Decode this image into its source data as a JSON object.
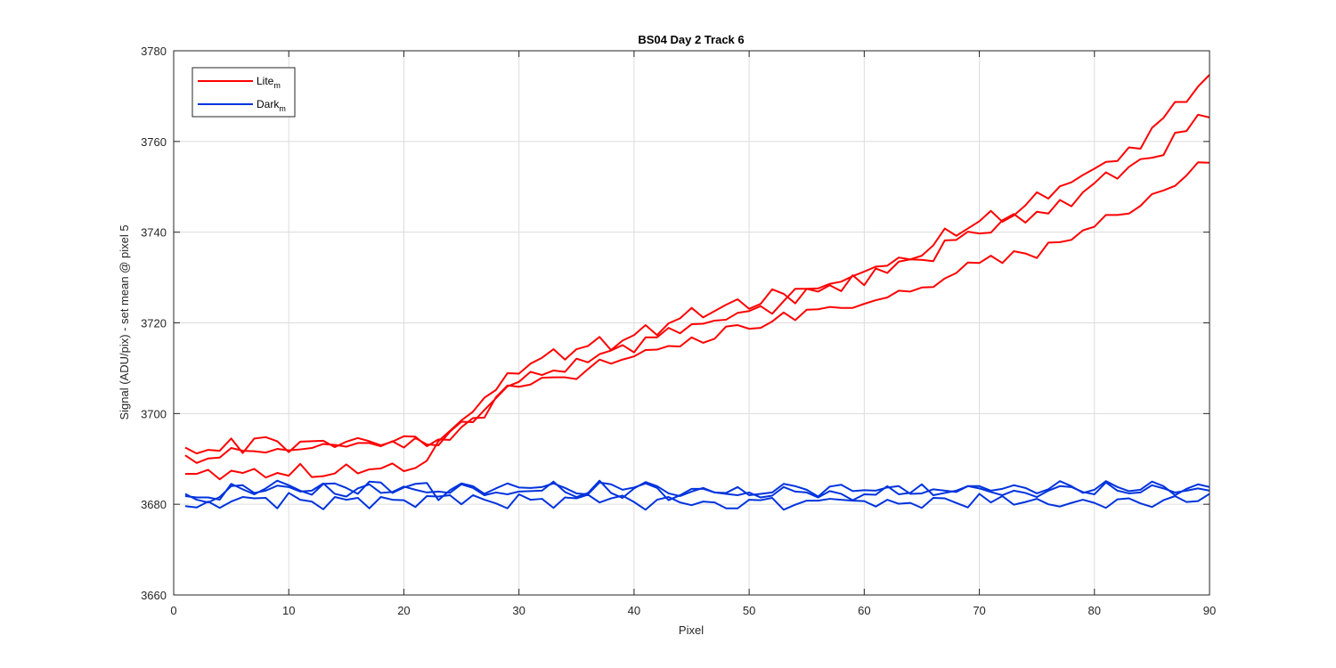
{
  "chart_data": {
    "type": "line",
    "title": "BS04 Day 2 Track 6",
    "xlabel": "Pixel",
    "ylabel": "Signal (ADU/pix) - set mean @ pixel 5",
    "xlim": [
      0,
      90
    ],
    "ylim": [
      3660,
      3780
    ],
    "x_ticks": [
      "0",
      "10",
      "20",
      "30",
      "40",
      "50",
      "60",
      "70",
      "80",
      "90"
    ],
    "y_ticks": [
      "3660",
      "3680",
      "3700",
      "3720",
      "3740",
      "3760",
      "3780"
    ],
    "grid": true,
    "legend_position": "top-left",
    "legend": [
      {
        "label": "Lite",
        "subscript": "m",
        "color": "#ff0000"
      },
      {
        "label": "Dark",
        "subscript": "m",
        "color": "#0033dd"
      }
    ],
    "x": [
      1,
      2,
      3,
      4,
      5,
      6,
      7,
      8,
      9,
      10,
      11,
      12,
      13,
      14,
      15,
      16,
      17,
      18,
      19,
      20,
      21,
      22,
      23,
      24,
      25,
      26,
      27,
      28,
      29,
      30,
      31,
      32,
      33,
      34,
      35,
      36,
      37,
      38,
      39,
      40,
      41,
      42,
      43,
      44,
      45,
      46,
      47,
      48,
      49,
      50,
      51,
      52,
      53,
      54,
      55,
      56,
      57,
      58,
      59,
      60,
      61,
      62,
      63,
      64,
      65,
      66,
      67,
      68,
      69,
      70,
      71,
      72,
      73,
      74,
      75,
      76,
      77,
      78,
      79,
      80,
      81,
      82,
      83,
      84,
      85,
      86,
      87,
      88,
      89,
      90
    ],
    "series": [
      {
        "group": "Lite",
        "color": "#ff0000",
        "values": [
          3692.5,
          3691.2,
          3692.0,
          3691.8,
          3694.5,
          3691.3,
          3694.5,
          3694.8,
          3693.9,
          3691.5,
          3693.8,
          3693.9,
          3694.0,
          3692.6,
          3693.8,
          3694.6,
          3693.9,
          3693.0,
          3693.8,
          3695.0,
          3694.9,
          3692.8,
          3694.3,
          3694.2,
          3697.0,
          3699.0,
          3699.1,
          3703.6,
          3706.2,
          3705.9,
          3706.4,
          3707.9,
          3708.0,
          3708.0,
          3707.6,
          3709.8,
          3711.9,
          3711.0,
          3711.9,
          3712.6,
          3714.0,
          3714.1,
          3714.9,
          3714.8,
          3716.8,
          3715.6,
          3716.5,
          3719.2,
          3719.5,
          3718.7,
          3718.9,
          3720.3,
          3722.3,
          3720.6,
          3722.9,
          3723.0,
          3723.5,
          3723.3,
          3723.3,
          3724.2,
          3725.0,
          3725.6,
          3727.1,
          3726.9,
          3727.8,
          3727.9,
          3729.8,
          3731.0,
          3733.3,
          3733.2,
          3734.8,
          3733.2,
          3735.8,
          3735.3,
          3734.3,
          3737.7,
          3737.8,
          3738.3,
          3740.4,
          3741.2,
          3743.8,
          3743.8,
          3744.1,
          3745.8,
          3748.4,
          3749.2,
          3750.2,
          3752.5,
          3755.4,
          3755.3
        ]
      },
      {
        "group": "Lite",
        "color": "#ff0000",
        "values": [
          3690.8,
          3689.1,
          3690.1,
          3690.3,
          3692.4,
          3691.8,
          3691.7,
          3691.4,
          3692.2,
          3691.9,
          3692.1,
          3692.4,
          3693.3,
          3693.1,
          3692.7,
          3693.5,
          3693.5,
          3692.8,
          3693.9,
          3692.5,
          3694.6,
          3693.2,
          3693.0,
          3696.0,
          3698.2,
          3698.1,
          3700.8,
          3703.4,
          3706.0,
          3707.0,
          3709.2,
          3708.5,
          3709.5,
          3709.2,
          3712.1,
          3711.3,
          3713.1,
          3713.9,
          3715.1,
          3713.5,
          3716.8,
          3716.8,
          3718.9,
          3717.7,
          3719.7,
          3719.8,
          3720.5,
          3720.7,
          3722.2,
          3722.6,
          3723.7,
          3722.0,
          3724.8,
          3727.5,
          3727.5,
          3726.9,
          3728.3,
          3727.0,
          3730.5,
          3728.3,
          3732.0,
          3731.0,
          3733.5,
          3734.0,
          3733.9,
          3733.6,
          3738.2,
          3738.3,
          3740.1,
          3739.7,
          3739.9,
          3742.6,
          3744.0,
          3742.1,
          3744.5,
          3744.1,
          3747.1,
          3745.7,
          3748.8,
          3750.8,
          3753.2,
          3751.8,
          3754.4,
          3756.1,
          3756.4,
          3757.0,
          3761.9,
          3762.3,
          3765.9,
          3765.3
        ]
      },
      {
        "group": "Lite",
        "color": "#ff0000",
        "values": [
          3686.7,
          3686.7,
          3687.6,
          3685.5,
          3687.4,
          3686.9,
          3687.8,
          3685.9,
          3686.9,
          3686.3,
          3688.9,
          3686.0,
          3686.2,
          3686.8,
          3688.8,
          3686.8,
          3687.7,
          3687.9,
          3689.0,
          3687.3,
          3688.0,
          3689.6,
          3693.9,
          3696.2,
          3698.5,
          3700.4,
          3703.5,
          3705.2,
          3708.9,
          3708.8,
          3711.0,
          3712.3,
          3714.2,
          3711.9,
          3714.2,
          3714.9,
          3716.9,
          3714.0,
          3716.1,
          3717.3,
          3719.5,
          3717.3,
          3719.9,
          3721.0,
          3723.3,
          3721.2,
          3722.6,
          3724.0,
          3725.2,
          3723.1,
          3724.2,
          3727.4,
          3726.4,
          3724.3,
          3727.5,
          3727.6,
          3728.6,
          3729.1,
          3730.3,
          3731.3,
          3732.4,
          3732.6,
          3734.4,
          3734.0,
          3734.8,
          3737.1,
          3740.8,
          3739.2,
          3740.8,
          3742.4,
          3744.7,
          3742.3,
          3743.7,
          3745.9,
          3748.8,
          3747.4,
          3750.1,
          3751.0,
          3752.6,
          3754.0,
          3755.5,
          3755.7,
          3758.7,
          3758.4,
          3763.0,
          3765.2,
          3768.7,
          3768.7,
          3772.1,
          3774.7
        ]
      },
      {
        "group": "Dark",
        "color": "#0033dd",
        "values": [
          3681.8,
          3681.5,
          3681.5,
          3681.0,
          3684.5,
          3683.3,
          3682.2,
          3683.5,
          3685.2,
          3684.2,
          3683.0,
          3682.1,
          3684.5,
          3684.6,
          3683.6,
          3682.3,
          3685.0,
          3684.8,
          3682.5,
          3683.7,
          3684.5,
          3684.7,
          3680.9,
          3683.1,
          3684.6,
          3684.0,
          3682.3,
          3683.5,
          3684.6,
          3683.7,
          3683.6,
          3683.8,
          3684.6,
          3683.6,
          3682.4,
          3682.2,
          3684.8,
          3684.4,
          3683.2,
          3683.7,
          3684.6,
          3683.6,
          3680.9,
          3682.0,
          3683.4,
          3683.4,
          3682.6,
          3682.5,
          3683.8,
          3682.0,
          3682.3,
          3682.6,
          3684.5,
          3684.0,
          3683.2,
          3681.7,
          3683.9,
          3684.3,
          3682.9,
          3683.1,
          3683.0,
          3683.7,
          3684.0,
          3682.3,
          3682.4,
          3683.3,
          3683.0,
          3682.7,
          3684.0,
          3684.0,
          3683.0,
          3683.4,
          3684.2,
          3683.6,
          3682.4,
          3683.3,
          3685.1,
          3684.0,
          3682.5,
          3683.2,
          3685.1,
          3683.8,
          3682.9,
          3683.2,
          3685.0,
          3684.0,
          3682.0,
          3683.4,
          3684.4,
          3683.8
        ]
      },
      {
        "group": "Dark",
        "color": "#0033dd",
        "values": [
          3682.3,
          3681.0,
          3680.4,
          3681.6,
          3684.0,
          3684.2,
          3682.5,
          3683.0,
          3684.1,
          3683.8,
          3682.8,
          3683.0,
          3684.6,
          3682.3,
          3681.7,
          3683.5,
          3684.4,
          3682.5,
          3682.7,
          3683.9,
          3683.2,
          3682.6,
          3682.8,
          3682.5,
          3684.4,
          3683.6,
          3682.0,
          3682.6,
          3682.2,
          3682.8,
          3682.9,
          3683.0,
          3685.0,
          3682.7,
          3681.6,
          3682.5,
          3685.2,
          3682.5,
          3681.4,
          3683.5,
          3684.9,
          3684.0,
          3682.4,
          3681.8,
          3682.8,
          3683.6,
          3682.6,
          3682.3,
          3682.0,
          3682.6,
          3681.5,
          3681.9,
          3683.8,
          3682.8,
          3682.6,
          3681.5,
          3682.9,
          3682.3,
          3680.9,
          3682.2,
          3682.1,
          3684.0,
          3682.2,
          3682.5,
          3684.4,
          3682.0,
          3682.5,
          3683.0,
          3684.0,
          3683.5,
          3682.7,
          3682.0,
          3683.0,
          3682.5,
          3681.6,
          3683.0,
          3684.0,
          3683.8,
          3682.7,
          3682.2,
          3684.8,
          3683.0,
          3682.4,
          3682.6,
          3684.2,
          3683.5,
          3682.6,
          3683.0,
          3683.5,
          3683.0
        ]
      },
      {
        "group": "Dark",
        "color": "#0033dd",
        "values": [
          3679.6,
          3679.3,
          3680.6,
          3679.2,
          3680.6,
          3681.6,
          3681.3,
          3681.4,
          3679.1,
          3682.5,
          3681.0,
          3680.6,
          3678.9,
          3681.6,
          3681.0,
          3681.4,
          3679.1,
          3681.6,
          3681.0,
          3680.9,
          3679.4,
          3681.8,
          3681.7,
          3682.0,
          3680.0,
          3682.0,
          3681.0,
          3680.2,
          3679.1,
          3682.2,
          3681.0,
          3681.2,
          3679.2,
          3681.5,
          3681.3,
          3682.1,
          3680.4,
          3681.3,
          3681.9,
          3680.5,
          3678.8,
          3681.0,
          3681.6,
          3680.4,
          3679.8,
          3680.6,
          3680.4,
          3679.1,
          3679.1,
          3681.0,
          3680.9,
          3681.4,
          3678.8,
          3679.9,
          3680.8,
          3680.8,
          3681.2,
          3681.0,
          3680.8,
          3680.7,
          3679.5,
          3681.0,
          3680.1,
          3680.3,
          3679.2,
          3681.4,
          3681.3,
          3680.3,
          3679.3,
          3682.3,
          3680.4,
          3681.8,
          3679.9,
          3680.5,
          3681.2,
          3680.0,
          3679.5,
          3680.3,
          3681.0,
          3680.3,
          3679.2,
          3681.1,
          3681.3,
          3680.2,
          3679.4,
          3680.9,
          3681.8,
          3680.5,
          3680.7,
          3682.3
        ]
      }
    ]
  }
}
